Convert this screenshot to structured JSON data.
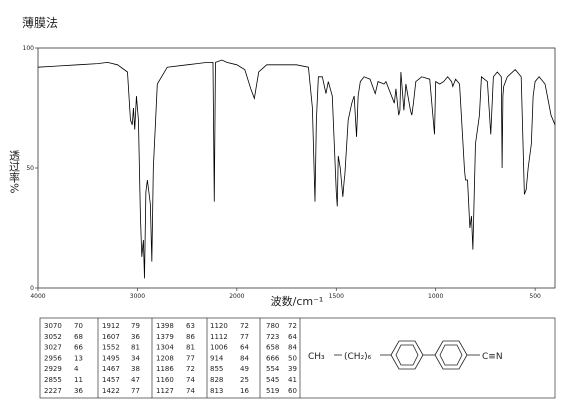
{
  "chart_data": {
    "type": "line",
    "title": "薄膜法",
    "xlabel": "波数/cm⁻¹",
    "ylabel": "透过率%",
    "xlim": [
      4000,
      400
    ],
    "ylim": [
      0,
      100
    ],
    "x_scale_change": 2000,
    "x_scale_factor": 2,
    "xticks": [
      4000,
      3000,
      2000,
      1500,
      1000,
      500
    ],
    "yticks": [
      0,
      50,
      100
    ],
    "color": "#000000",
    "x": [
      4000,
      3800,
      3600,
      3400,
      3300,
      3200,
      3100,
      3070,
      3052,
      3040,
      3027,
      3010,
      2990,
      2970,
      2956,
      2940,
      2929,
      2915,
      2900,
      2870,
      2855,
      2840,
      2800,
      2700,
      2500,
      2400,
      2300,
      2240,
      2227,
      2215,
      2150,
      2100,
      2000,
      1960,
      1930,
      1912,
      1890,
      1850,
      1800,
      1700,
      1640,
      1620,
      1607,
      1600,
      1590,
      1570,
      1552,
      1540,
      1520,
      1500,
      1495,
      1490,
      1480,
      1467,
      1460,
      1457,
      1440,
      1422,
      1410,
      1398,
      1390,
      1379,
      1360,
      1330,
      1304,
      1290,
      1260,
      1250,
      1208,
      1200,
      1186,
      1180,
      1175,
      1160,
      1150,
      1127,
      1120,
      1112,
      1100,
      1070,
      1030,
      1006,
      1000,
      980,
      960,
      940,
      920,
      914,
      900,
      880,
      855,
      850,
      840,
      828,
      820,
      813,
      800,
      780,
      770,
      740,
      723,
      710,
      690,
      670,
      666,
      662,
      658,
      640,
      600,
      570,
      554,
      545,
      535,
      519,
      510,
      500,
      480,
      450,
      420,
      400
    ],
    "values": [
      92,
      92.5,
      93,
      93.5,
      94,
      93,
      90,
      70,
      68,
      75,
      66,
      80,
      70,
      30,
      13,
      20,
      4,
      40,
      45,
      35,
      11,
      50,
      85,
      92,
      93,
      93.5,
      94,
      94,
      36,
      94,
      95,
      94,
      93,
      91,
      83,
      79,
      90,
      93,
      93,
      93,
      92,
      75,
      36,
      70,
      88,
      88,
      81,
      86,
      80,
      40,
      34,
      55,
      50,
      38,
      45,
      47,
      70,
      77,
      80,
      63,
      80,
      86,
      88,
      87,
      81,
      86,
      85,
      86,
      77,
      83,
      72,
      74,
      90,
      74,
      85,
      74,
      72,
      77,
      86,
      88,
      87,
      64,
      86,
      85,
      86,
      88,
      86,
      84,
      87,
      85,
      49,
      45,
      45,
      25,
      30,
      16,
      60,
      72,
      88,
      86,
      64,
      88,
      90,
      88,
      50,
      80,
      84,
      88,
      91,
      88,
      39,
      41,
      50,
      60,
      80,
      86,
      88,
      85,
      72,
      68
    ]
  },
  "peak_table": {
    "rows": [
      [
        3070,
        70,
        1912,
        79,
        1398,
        63,
        1120,
        72,
        780,
        72
      ],
      [
        3052,
        68,
        1607,
        36,
        1379,
        86,
        1112,
        77,
        723,
        64
      ],
      [
        3027,
        66,
        1552,
        81,
        1304,
        81,
        1006,
        64,
        658,
        84
      ],
      [
        2956,
        13,
        1495,
        34,
        1208,
        77,
        914,
        84,
        666,
        50
      ],
      [
        2929,
        4,
        1467,
        38,
        1186,
        72,
        855,
        49,
        554,
        39
      ],
      [
        2855,
        11,
        1457,
        47,
        1160,
        74,
        828,
        25,
        545,
        41
      ],
      [
        2227,
        36,
        1422,
        77,
        1127,
        74,
        813,
        16,
        519,
        60
      ]
    ]
  },
  "structure": {
    "left": "CH₃",
    "chain": "(CH₂)₆",
    "group": "C≡N"
  }
}
